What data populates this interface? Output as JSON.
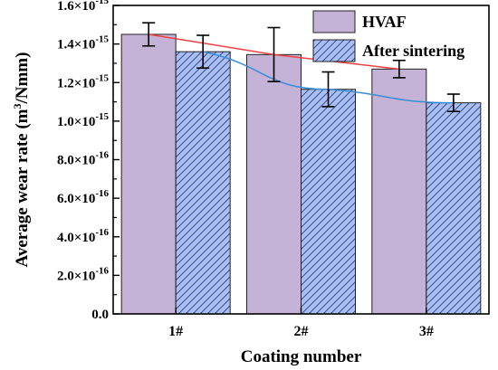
{
  "chart_data": {
    "type": "bar",
    "categories": [
      "1#",
      "2#",
      "3#"
    ],
    "series": [
      {
        "name": "HVAF",
        "values": [
          1.45e-15,
          1.345e-15,
          1.27e-15
        ],
        "errors": [
          6e-17,
          1.4e-16,
          4.5e-17
        ],
        "color": "#c4b3d6",
        "pattern": "solid"
      },
      {
        "name": "After sintering",
        "values": [
          1.36e-15,
          1.165e-15,
          1.095e-15
        ],
        "errors": [
          8.5e-17,
          9e-17,
          4.5e-17
        ],
        "color": "#a9bff0",
        "pattern": "diagonal-hatch"
      }
    ],
    "trend_lines": [
      {
        "series": "HVAF",
        "color": "#f04040"
      },
      {
        "series": "After sintering",
        "color": "#3a8ed8"
      }
    ],
    "ylim": [
      0,
      1.6e-15
    ],
    "yticks": [
      0,
      2e-16,
      4e-16,
      6e-16,
      8e-16,
      1e-15,
      1.2e-15,
      1.4e-15,
      1.6e-15
    ],
    "ytick_labels": [
      {
        "base": "0.0",
        "exp": ""
      },
      {
        "base": "2.0×10",
        "exp": "-16"
      },
      {
        "base": "4.0×10",
        "exp": "-16"
      },
      {
        "base": "6.0×10",
        "exp": "-16"
      },
      {
        "base": "8.0×10",
        "exp": "-16"
      },
      {
        "base": "1.0×10",
        "exp": "-15"
      },
      {
        "base": "1.2×10",
        "exp": "-15"
      },
      {
        "base": "1.4×10",
        "exp": "-15"
      },
      {
        "base": "1.6×10",
        "exp": "-15"
      }
    ],
    "xlabel": "Coating number",
    "ylabel": {
      "prefix": "Average wear rate (m",
      "sup": "3",
      "suffix": "/Nmm)"
    },
    "legend_position": "top-right",
    "grid": false
  }
}
